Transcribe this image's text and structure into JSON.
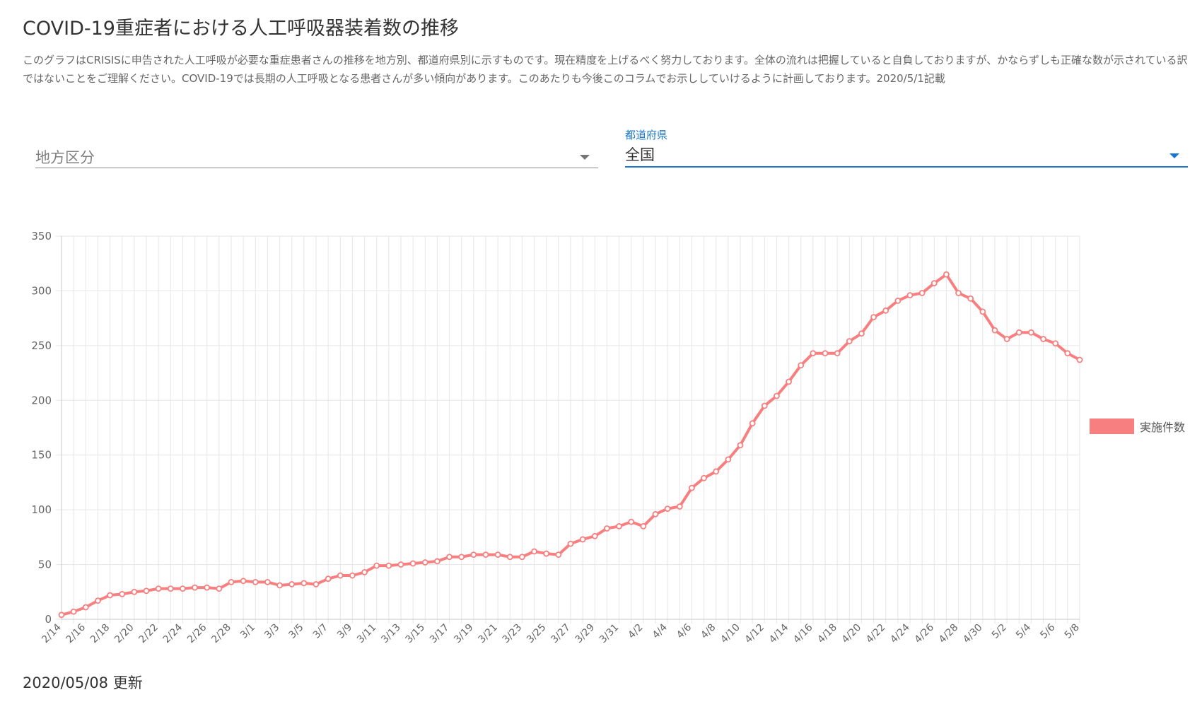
{
  "header": {
    "title": "COVID-19重症者における人工呼吸器装着数の推移",
    "description": "このグラフはCRISISに申告された人工呼吸が必要な重症患者さんの推移を地方別、都道府県別に示すものです。現在精度を上げるべく努力しております。全体の流れは把握していると自負しておりますが、かならずしも正確な数が示されている訳ではないことをご理解ください。COVID-19では長期の人工呼吸となる患者さんが多い傾向があります。このあたりも今後このコラムでお示ししていけるように計画しております。2020/5/1記載"
  },
  "filters": {
    "region": {
      "placeholder": "地方区分"
    },
    "prefecture": {
      "label": "都道府県",
      "value": "全国"
    }
  },
  "footer": {
    "updated": "2020/05/08 更新"
  },
  "colors": {
    "series": "#f77f7f",
    "accent": "#1976d2",
    "grid": "#e6e6e6"
  },
  "chart_data": {
    "type": "line",
    "title": "",
    "xlabel": "",
    "ylabel": "",
    "ylim": [
      0,
      350
    ],
    "yticks": [
      0,
      50,
      100,
      150,
      200,
      250,
      300,
      350
    ],
    "grid": true,
    "legend": "right",
    "x_tick_labels": [
      "2/14",
      "2/16",
      "2/18",
      "2/20",
      "2/22",
      "2/24",
      "2/26",
      "2/28",
      "3/1",
      "3/3",
      "3/5",
      "3/7",
      "3/9",
      "3/11",
      "3/13",
      "3/15",
      "3/17",
      "3/19",
      "3/21",
      "3/23",
      "3/25",
      "3/27",
      "3/29",
      "3/31",
      "4/2",
      "4/4",
      "4/6",
      "4/8",
      "4/10",
      "4/12",
      "4/14",
      "4/16",
      "4/18",
      "4/20",
      "4/22",
      "4/24",
      "4/26",
      "4/28",
      "4/30",
      "5/2",
      "5/4",
      "5/6",
      "5/8"
    ],
    "categories": [
      "2/14",
      "2/15",
      "2/16",
      "2/17",
      "2/18",
      "2/19",
      "2/20",
      "2/21",
      "2/22",
      "2/23",
      "2/24",
      "2/25",
      "2/26",
      "2/27",
      "2/28",
      "2/29",
      "3/1",
      "3/2",
      "3/3",
      "3/4",
      "3/5",
      "3/6",
      "3/7",
      "3/8",
      "3/9",
      "3/10",
      "3/11",
      "3/12",
      "3/13",
      "3/14",
      "3/15",
      "3/16",
      "3/17",
      "3/18",
      "3/19",
      "3/20",
      "3/21",
      "3/22",
      "3/23",
      "3/24",
      "3/25",
      "3/26",
      "3/27",
      "3/28",
      "3/29",
      "3/30",
      "3/31",
      "4/1",
      "4/2",
      "4/3",
      "4/4",
      "4/5",
      "4/6",
      "4/7",
      "4/8",
      "4/9",
      "4/10",
      "4/11",
      "4/12",
      "4/13",
      "4/14",
      "4/15",
      "4/16",
      "4/17",
      "4/18",
      "4/19",
      "4/20",
      "4/21",
      "4/22",
      "4/23",
      "4/24",
      "4/25",
      "4/26",
      "4/27",
      "4/28",
      "4/29",
      "4/30",
      "5/1",
      "5/2",
      "5/3",
      "5/4",
      "5/5",
      "5/6",
      "5/7",
      "5/8"
    ],
    "series": [
      {
        "name": "実施件数",
        "color": "#f77f7f",
        "values": [
          4,
          7,
          11,
          17,
          22,
          23,
          25,
          26,
          28,
          28,
          28,
          29,
          29,
          28,
          34,
          35,
          34,
          34,
          31,
          32,
          33,
          32,
          37,
          40,
          40,
          43,
          49,
          49,
          50,
          51,
          52,
          53,
          57,
          57,
          59,
          59,
          59,
          57,
          57,
          62,
          60,
          59,
          69,
          73,
          76,
          83,
          85,
          89,
          85,
          96,
          101,
          103,
          120,
          129,
          135,
          146,
          159,
          179,
          195,
          204,
          217,
          232,
          243,
          243,
          243,
          254,
          261,
          276,
          282,
          291,
          296,
          298,
          307,
          315,
          298,
          293,
          281,
          264,
          256,
          262,
          262,
          256,
          252,
          243,
          237
        ]
      }
    ]
  }
}
